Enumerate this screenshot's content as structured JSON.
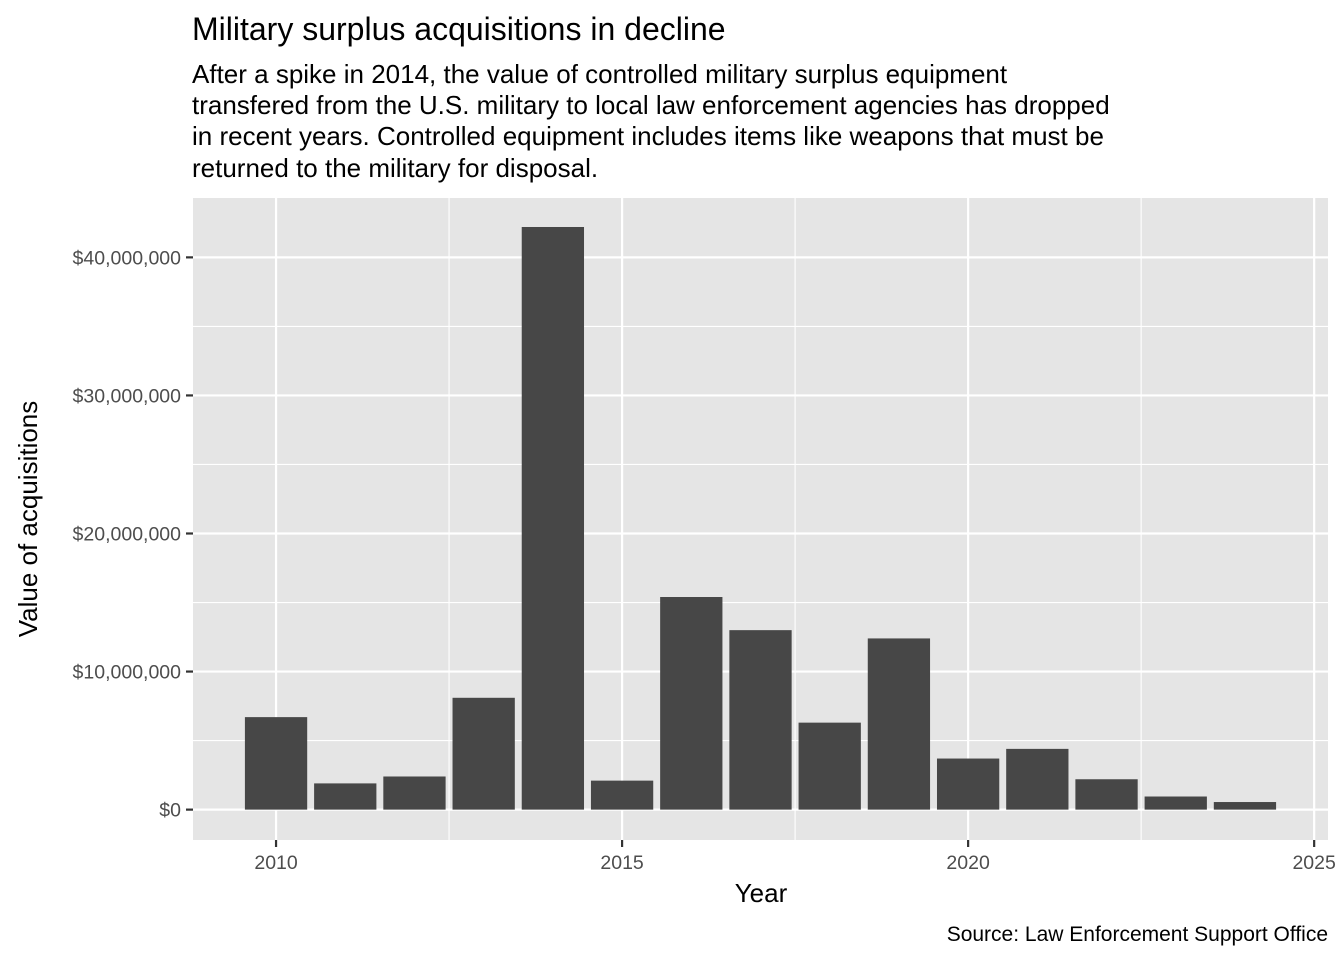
{
  "chart_data": {
    "type": "bar",
    "title": "Military surplus acquisitions in decline",
    "subtitle_lines": [
      "After a spike in 2014, the value of controlled military surplus equipment",
      "transfered from the U.S. military to local law enforcement agencies has dropped",
      "in recent years. Controlled equipment includes items like weapons that must be",
      "returned to the military for disposal."
    ],
    "caption": "Source: Law Enforcement Support Office",
    "xlabel": "Year",
    "ylabel": "Value of acquisitions",
    "x": [
      2010,
      2011,
      2012,
      2013,
      2014,
      2015,
      2016,
      2017,
      2018,
      2019,
      2020,
      2021,
      2022,
      2023,
      2024
    ],
    "values": [
      6700000,
      1900000,
      2400000,
      8100000,
      42200000,
      2100000,
      15400000,
      13000000,
      6300000,
      12400000,
      3700000,
      4400000,
      2200000,
      950000,
      550000
    ],
    "xlim": [
      2008.8,
      2025.2
    ],
    "ylim": [
      -2200000,
      44300000
    ],
    "x_ticks": [
      2010,
      2015,
      2020,
      2025
    ],
    "x_tick_labels": [
      "2010",
      "2015",
      "2020",
      "2025"
    ],
    "y_ticks": [
      0,
      10000000,
      20000000,
      30000000,
      40000000
    ],
    "y_tick_labels": [
      "$0",
      "$10,000,000",
      "$20,000,000",
      "$30,000,000",
      "$40,000,000"
    ],
    "grid": true,
    "colors": {
      "bar": "#474747",
      "panel_background": "#e5e5e5",
      "grid_major": "#ffffff",
      "tick_text": "#4d4d4d"
    }
  }
}
